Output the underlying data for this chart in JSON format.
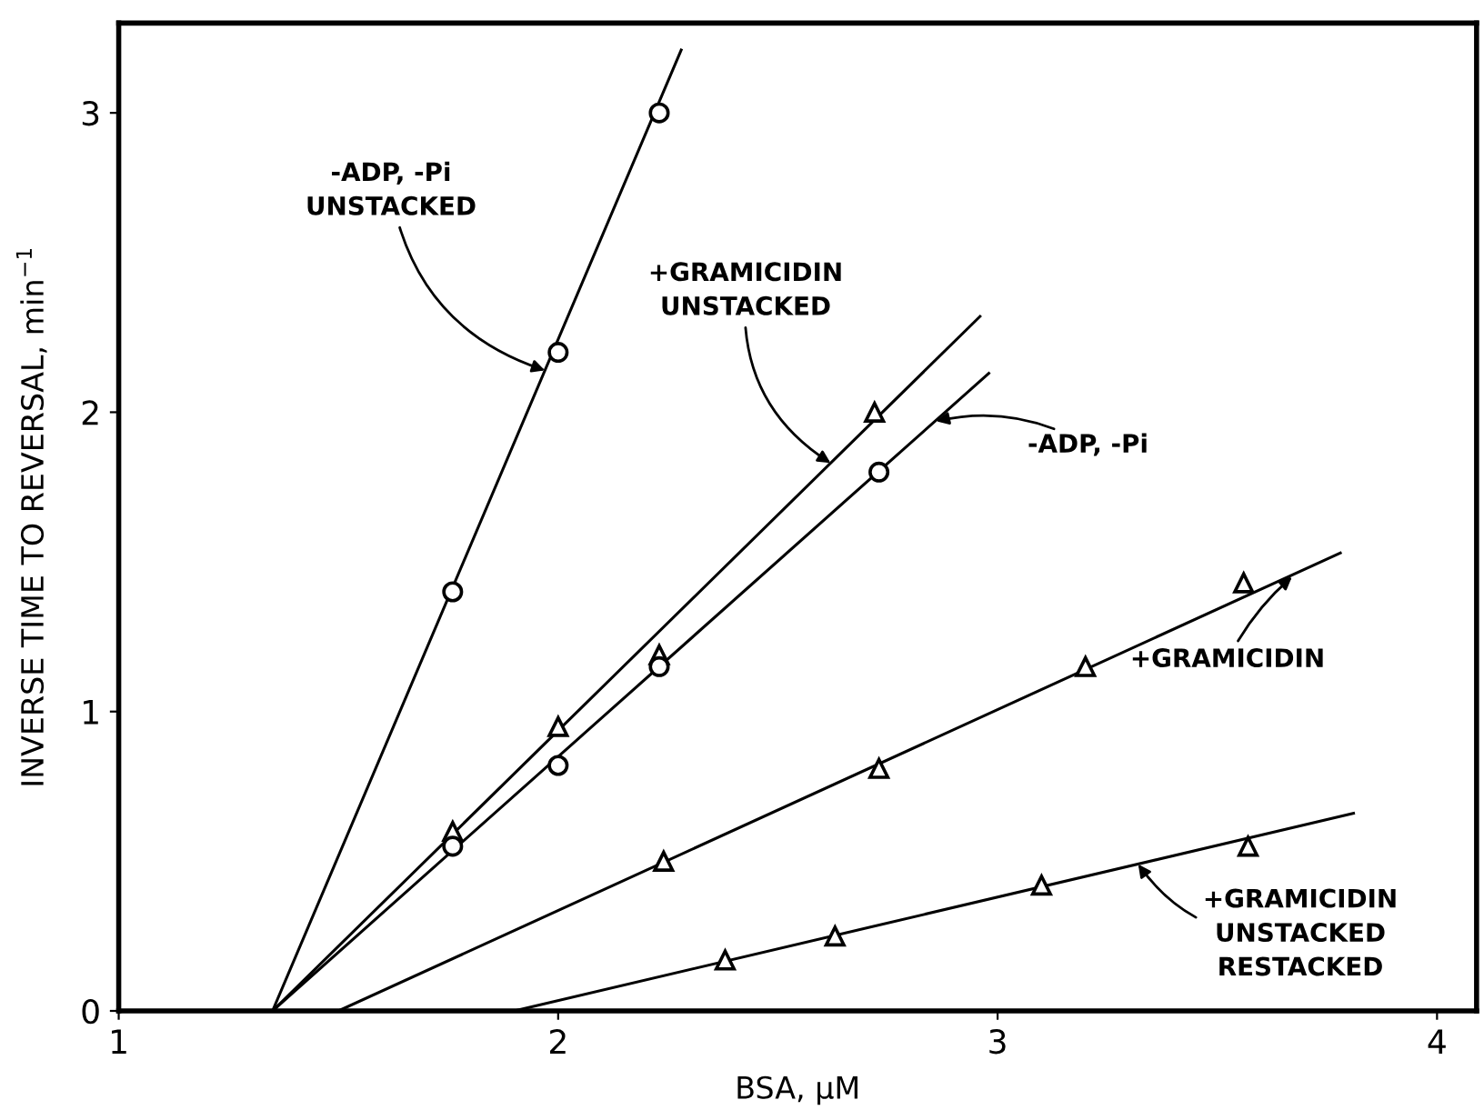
{
  "chart_data": {
    "type": "scatter",
    "xlabel": "BSA, µM",
    "ylabel": "INVERSE TIME TO REVERSAL, min$^{−1}$",
    "xlim": [
      1.0,
      4.09
    ],
    "ylim": [
      0,
      3.3
    ],
    "xticks": [
      1,
      2,
      3,
      4
    ],
    "yticks": [
      0,
      1,
      2,
      3
    ],
    "grid": false,
    "legend": false,
    "series": [
      {
        "marker": "circle",
        "color": "#000000",
        "x": [
          1.76,
          2.0,
          2.23
        ],
        "values": [
          1.4,
          2.2,
          3.0
        ]
      },
      {
        "marker": "triangle",
        "color": "#000000",
        "x": [
          1.76,
          2.0,
          2.23,
          2.72
        ],
        "values": [
          0.6,
          0.95,
          1.19,
          2.0
        ]
      },
      {
        "marker": "circle",
        "color": "#000000",
        "x": [
          1.76,
          2.0,
          2.23,
          2.73
        ],
        "values": [
          0.55,
          0.82,
          1.15,
          1.8
        ]
      },
      {
        "marker": "triangle",
        "color": "#000000",
        "x": [
          2.24,
          2.73,
          3.2,
          3.56
        ],
        "values": [
          0.5,
          0.81,
          1.15,
          1.43
        ]
      },
      {
        "marker": "triangle",
        "color": "#000000",
        "x": [
          2.38,
          2.63,
          3.1,
          3.57
        ],
        "values": [
          0.17,
          0.25,
          0.42,
          0.55
        ]
      },
      {
        "type": "line",
        "color": "#000000",
        "x": [
          1.35,
          2.28
        ],
        "values": [
          0,
          3.21
        ]
      },
      {
        "type": "line",
        "color": "#000000",
        "x": [
          1.35,
          2.96
        ],
        "values": [
          0,
          2.32
        ]
      },
      {
        "type": "line",
        "color": "#000000",
        "x": [
          1.35,
          2.98
        ],
        "values": [
          0,
          2.13
        ]
      },
      {
        "type": "line",
        "color": "#000000",
        "x": [
          1.5,
          3.78
        ],
        "values": [
          0,
          1.53
        ]
      },
      {
        "type": "line",
        "color": "#000000",
        "x": [
          1.9,
          3.81
        ],
        "values": [
          0,
          0.66
        ]
      }
    ],
    "annotations": [
      {
        "text": "-ADP, -Pi\nUNSTACKED",
        "x": 1.97,
        "y": 2.14
      },
      {
        "text": "+GRAMICIDIN\nUNSTACKED",
        "x": 2.62,
        "y": 1.83
      },
      {
        "text": "-ADP, -Pi",
        "x": 2.86,
        "y": 1.97
      },
      {
        "text": "+GRAMICIDIN",
        "x": 3.67,
        "y": 1.45
      },
      {
        "text": "+GRAMICIDIN\nUNSTACKED\nRESTACKED",
        "x": 3.32,
        "y": 0.49
      }
    ]
  }
}
